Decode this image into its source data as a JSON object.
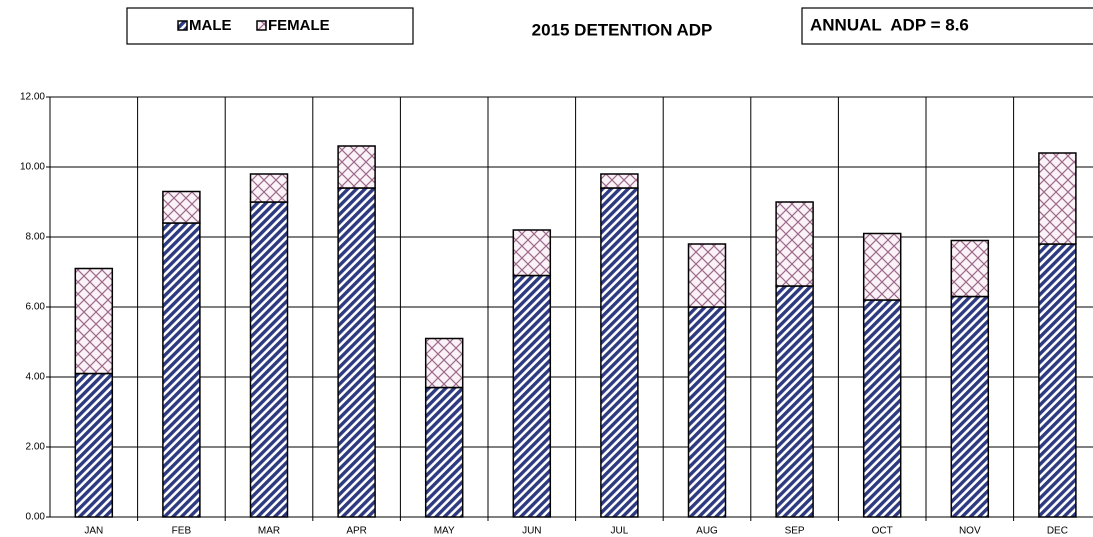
{
  "chart_data": {
    "type": "stacked_bar",
    "title": "2015 DETENTION ADP",
    "annotation": "ANNUAL  ADP = 8.6",
    "categories": [
      "JAN",
      "FEB",
      "MAR",
      "APR",
      "MAY",
      "JUN",
      "JUL",
      "AUG",
      "SEP",
      "OCT",
      "NOV",
      "DEC"
    ],
    "series": [
      {
        "name": "MALE",
        "color": "#2e3a80",
        "values": [
          4.1,
          8.4,
          9.0,
          9.4,
          3.7,
          6.9,
          9.4,
          6.0,
          6.6,
          6.2,
          6.3,
          7.8
        ]
      },
      {
        "name": "FEMALE",
        "color": "#9c6a8a",
        "values": [
          3.0,
          0.9,
          0.8,
          1.2,
          1.4,
          1.3,
          0.4,
          1.8,
          2.4,
          1.9,
          1.6,
          2.6
        ]
      }
    ],
    "ylim": [
      0,
      12
    ],
    "yticks": [
      {
        "value": 0,
        "label": "0.00"
      },
      {
        "value": 2,
        "label": "2.00"
      },
      {
        "value": 4,
        "label": "4.00"
      },
      {
        "value": 6,
        "label": "6.00"
      },
      {
        "value": 8,
        "label": "8.00"
      },
      {
        "value": 10,
        "label": "10.00"
      },
      {
        "value": 12,
        "label": "12.00"
      }
    ],
    "grid": true
  }
}
